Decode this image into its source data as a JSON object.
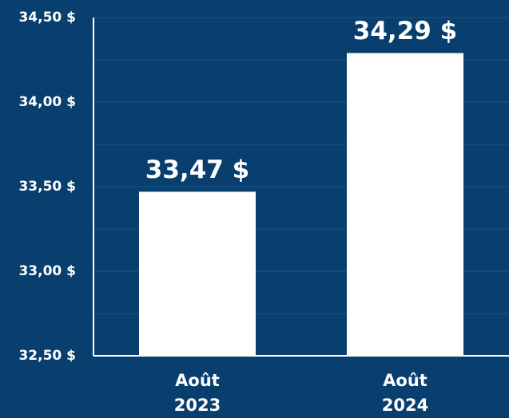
{
  "chart_data": {
    "type": "bar",
    "categories": [
      "Août 2023",
      "Août 2024"
    ],
    "values": [
      33.47,
      34.29
    ],
    "value_labels": [
      "33,47 $",
      "34,29 $"
    ],
    "color": "#ffffff",
    "ylim": [
      32.5,
      34.5
    ],
    "yticks": [
      {
        "value": 32.5,
        "label": "32,50 $"
      },
      {
        "value": 33,
        "label": "33,00 $"
      },
      {
        "value": 33.5,
        "label": "33,50 $"
      },
      {
        "value": 34,
        "label": "34,00 $"
      },
      {
        "value": 34.5,
        "label": "34,50 $"
      }
    ],
    "minor_yticks": [
      32.75,
      33.25,
      33.75,
      34.25
    ],
    "grid": true
  }
}
